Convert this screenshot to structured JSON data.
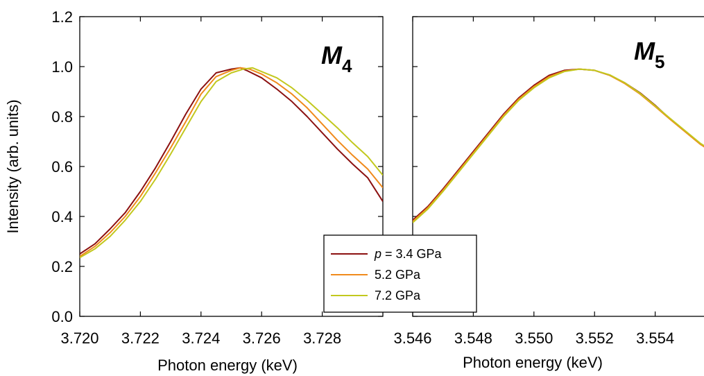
{
  "chart_data": [
    {
      "type": "line",
      "panel_label": "M",
      "panel_label_sub": "4",
      "xlabel": "Photon energy (keV)",
      "ylabel": "Intensity (arb. units)",
      "xlim": [
        3.72,
        3.73
      ],
      "ylim": [
        0.0,
        1.2
      ],
      "xticks": [
        "3.720",
        "3.722",
        "3.724",
        "3.726",
        "3.728"
      ],
      "xtick_values": [
        3.72,
        3.722,
        3.724,
        3.726,
        3.728
      ],
      "yticks": [
        "0.0",
        "0.2",
        "0.4",
        "0.6",
        "0.8",
        "1.0",
        "1.2"
      ],
      "ytick_values": [
        0.0,
        0.2,
        0.4,
        0.6,
        0.8,
        1.0,
        1.2
      ],
      "series": [
        {
          "name": "p = 3.4 GPa",
          "color": "#8b1010",
          "x": [
            3.72,
            3.7205,
            3.721,
            3.7215,
            3.722,
            3.7225,
            3.723,
            3.7235,
            3.724,
            3.7245,
            3.725,
            3.7253,
            3.7255,
            3.726,
            3.7265,
            3.727,
            3.7275,
            3.728,
            3.7285,
            3.729,
            3.7295,
            3.73
          ],
          "y": [
            0.25,
            0.29,
            0.35,
            0.415,
            0.5,
            0.595,
            0.7,
            0.81,
            0.91,
            0.975,
            0.99,
            0.995,
            0.985,
            0.955,
            0.91,
            0.86,
            0.8,
            0.735,
            0.67,
            0.61,
            0.555,
            0.46
          ]
        },
        {
          "name": "5.2 GPa",
          "color": "#f08a1c",
          "x": [
            3.72,
            3.7205,
            3.721,
            3.7215,
            3.722,
            3.7225,
            3.723,
            3.7235,
            3.724,
            3.7245,
            3.725,
            3.7253,
            3.7256,
            3.726,
            3.7265,
            3.727,
            3.7275,
            3.728,
            3.7285,
            3.729,
            3.7295,
            3.73
          ],
          "y": [
            0.24,
            0.28,
            0.335,
            0.4,
            0.48,
            0.575,
            0.675,
            0.78,
            0.89,
            0.96,
            0.985,
            0.995,
            0.99,
            0.97,
            0.935,
            0.89,
            0.835,
            0.77,
            0.705,
            0.645,
            0.59,
            0.515
          ]
        },
        {
          "name": "7.2 GPa",
          "color": "#c2c81e",
          "x": [
            3.72,
            3.7205,
            3.721,
            3.7215,
            3.722,
            3.7225,
            3.723,
            3.7235,
            3.724,
            3.7245,
            3.725,
            3.7254,
            3.7257,
            3.726,
            3.7265,
            3.727,
            3.7275,
            3.728,
            3.7285,
            3.729,
            3.7295,
            3.73
          ],
          "y": [
            0.235,
            0.27,
            0.32,
            0.385,
            0.46,
            0.55,
            0.65,
            0.755,
            0.86,
            0.94,
            0.975,
            0.99,
            0.995,
            0.98,
            0.955,
            0.915,
            0.865,
            0.81,
            0.755,
            0.695,
            0.64,
            0.565
          ]
        }
      ],
      "legend": {
        "placement": "bottom-left of right panel",
        "entries": [
          {
            "prefix": "p",
            "text": " = 3.4 GPa",
            "color": "#8b1010"
          },
          {
            "prefix": "",
            "text": "5.2 GPa",
            "color": "#f08a1c"
          },
          {
            "prefix": "",
            "text": "7.2 GPa",
            "color": "#c2c81e"
          }
        ]
      }
    },
    {
      "type": "line",
      "panel_label": "M",
      "panel_label_sub": "5",
      "xlabel": "Photon energy (keV)",
      "ylabel": "",
      "xlim": [
        3.546,
        3.556
      ],
      "ylim": [
        0.0,
        1.2
      ],
      "xticks": [
        "3.546",
        "3.548",
        "3.550",
        "3.552",
        "3.554"
      ],
      "xtick_values": [
        3.546,
        3.548,
        3.55,
        3.552,
        3.554
      ],
      "yticks": [],
      "ytick_values": [
        0.0,
        0.2,
        0.4,
        0.6,
        0.8,
        1.0,
        1.2
      ],
      "series": [
        {
          "name": "p = 3.4 GPa",
          "color": "#8b1010",
          "x": [
            3.546,
            3.5465,
            3.547,
            3.5475,
            3.548,
            3.5485,
            3.549,
            3.5495,
            3.55,
            3.5505,
            3.551,
            3.5515,
            3.552,
            3.5525,
            3.553,
            3.5535,
            3.554,
            3.5545,
            3.555,
            3.5555,
            3.556
          ],
          "y": [
            0.385,
            0.44,
            0.51,
            0.585,
            0.66,
            0.735,
            0.81,
            0.875,
            0.925,
            0.965,
            0.985,
            0.99,
            0.985,
            0.965,
            0.935,
            0.895,
            0.845,
            0.79,
            0.74,
            0.69,
            0.645
          ]
        },
        {
          "name": "5.2 GPa",
          "color": "#f08a1c",
          "x": [
            3.546,
            3.5465,
            3.547,
            3.5475,
            3.548,
            3.5485,
            3.549,
            3.5495,
            3.55,
            3.5505,
            3.551,
            3.5515,
            3.552,
            3.5525,
            3.553,
            3.5535,
            3.554,
            3.5545,
            3.555,
            3.5555,
            3.556
          ],
          "y": [
            0.38,
            0.435,
            0.505,
            0.58,
            0.655,
            0.73,
            0.805,
            0.87,
            0.92,
            0.96,
            0.982,
            0.99,
            0.985,
            0.965,
            0.932,
            0.89,
            0.84,
            0.788,
            0.738,
            0.688,
            0.65
          ]
        },
        {
          "name": "7.2 GPa",
          "color": "#c2c81e",
          "x": [
            3.546,
            3.5465,
            3.547,
            3.5475,
            3.548,
            3.5485,
            3.549,
            3.5495,
            3.55,
            3.5505,
            3.551,
            3.5515,
            3.552,
            3.5525,
            3.553,
            3.5535,
            3.554,
            3.5545,
            3.555,
            3.5555,
            3.556
          ],
          "y": [
            0.375,
            0.43,
            0.5,
            0.575,
            0.65,
            0.725,
            0.8,
            0.865,
            0.915,
            0.955,
            0.98,
            0.99,
            0.985,
            0.967,
            0.935,
            0.893,
            0.843,
            0.792,
            0.742,
            0.692,
            0.655
          ]
        }
      ]
    }
  ]
}
